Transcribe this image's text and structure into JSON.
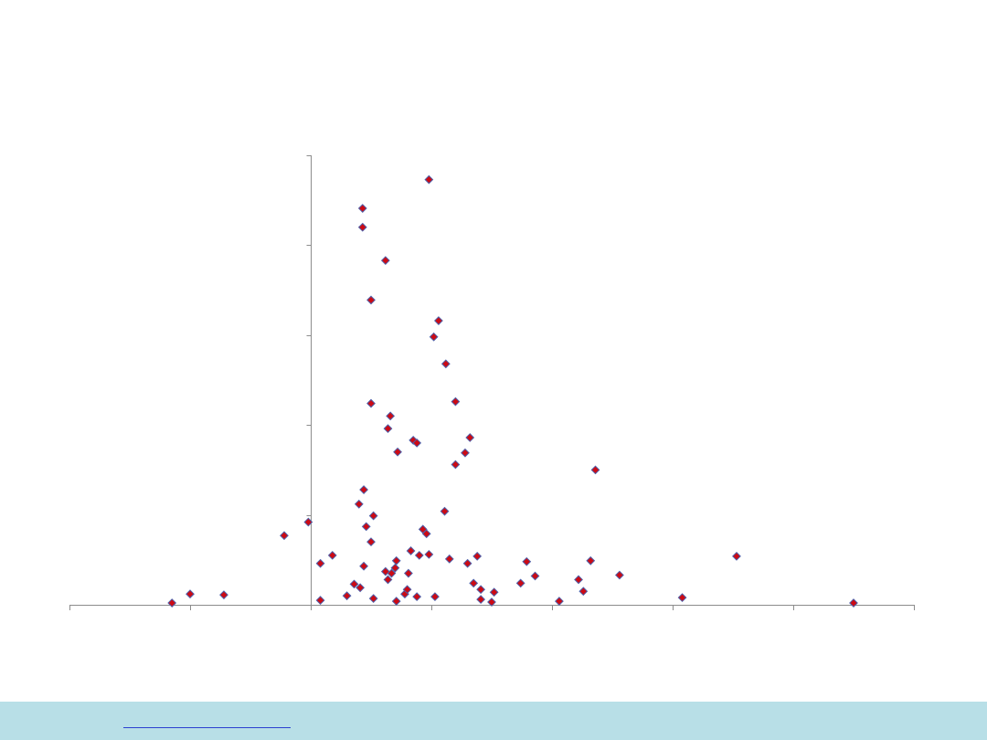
{
  "colors": {
    "point_fill": "#cc0a14",
    "point_stroke": "#4e5fa8",
    "axis": "#8c8c8c",
    "footer_bg": "#b8dfe7",
    "link": "#1a35c9"
  },
  "footer": {
    "link_text": ""
  },
  "chart_data": {
    "type": "scatter",
    "marker": "diamond",
    "title": "",
    "xlabel": "",
    "ylabel": "",
    "xlim": [
      -2,
      5
    ],
    "ylim": [
      0,
      50
    ],
    "x_ticks": [
      -2,
      -1,
      0,
      1,
      2,
      3,
      4,
      5
    ],
    "y_ticks": [
      0,
      10,
      20,
      30,
      40,
      50
    ],
    "grid": false,
    "legend": "none",
    "series": [
      {
        "points": [
          [
            -1.15,
            0.2
          ],
          [
            -1.0,
            1.2
          ],
          [
            -0.72,
            1.1
          ],
          [
            -0.22,
            7.7
          ],
          [
            -0.02,
            9.2
          ],
          [
            0.08,
            0.5
          ],
          [
            0.08,
            4.6
          ],
          [
            0.18,
            5.5
          ],
          [
            0.3,
            1.0
          ],
          [
            0.36,
            2.3
          ],
          [
            0.4,
            11.2
          ],
          [
            0.41,
            1.9
          ],
          [
            0.43,
            42.0
          ],
          [
            0.43,
            44.1
          ],
          [
            0.44,
            12.8
          ],
          [
            0.44,
            4.3
          ],
          [
            0.46,
            8.7
          ],
          [
            0.5,
            33.9
          ],
          [
            0.5,
            22.4
          ],
          [
            0.5,
            7.0
          ],
          [
            0.52,
            9.9
          ],
          [
            0.52,
            0.7
          ],
          [
            0.62,
            38.3
          ],
          [
            0.62,
            3.7
          ],
          [
            0.64,
            19.6
          ],
          [
            0.64,
            2.8
          ],
          [
            0.66,
            21.0
          ],
          [
            0.67,
            3.5
          ],
          [
            0.7,
            4.1
          ],
          [
            0.71,
            4.9
          ],
          [
            0.71,
            0.4
          ],
          [
            0.72,
            17.0
          ],
          [
            0.78,
            1.2
          ],
          [
            0.8,
            1.7
          ],
          [
            0.81,
            3.5
          ],
          [
            0.83,
            6.0
          ],
          [
            0.85,
            18.3
          ],
          [
            0.88,
            18.0
          ],
          [
            0.88,
            0.9
          ],
          [
            0.9,
            5.5
          ],
          [
            0.93,
            8.4
          ],
          [
            0.96,
            7.9
          ],
          [
            0.98,
            5.6
          ],
          [
            0.98,
            47.3
          ],
          [
            1.02,
            29.8
          ],
          [
            1.03,
            0.9
          ],
          [
            1.06,
            31.6
          ],
          [
            1.11,
            10.4
          ],
          [
            1.12,
            26.8
          ],
          [
            1.15,
            5.1
          ],
          [
            1.2,
            22.6
          ],
          [
            1.2,
            15.6
          ],
          [
            1.28,
            16.9
          ],
          [
            1.3,
            4.6
          ],
          [
            1.32,
            18.6
          ],
          [
            1.35,
            2.4
          ],
          [
            1.38,
            5.4
          ],
          [
            1.41,
            1.7
          ],
          [
            1.41,
            0.6
          ],
          [
            1.5,
            0.3
          ],
          [
            1.52,
            1.4
          ],
          [
            1.74,
            2.4
          ],
          [
            1.79,
            4.8
          ],
          [
            1.86,
            3.2
          ],
          [
            2.06,
            0.4
          ],
          [
            2.22,
            2.8
          ],
          [
            2.26,
            1.5
          ],
          [
            2.32,
            4.9
          ],
          [
            2.36,
            15.0
          ],
          [
            2.56,
            3.3
          ],
          [
            3.08,
            0.8
          ],
          [
            3.53,
            5.4
          ],
          [
            4.5,
            0.2
          ]
        ]
      }
    ]
  }
}
